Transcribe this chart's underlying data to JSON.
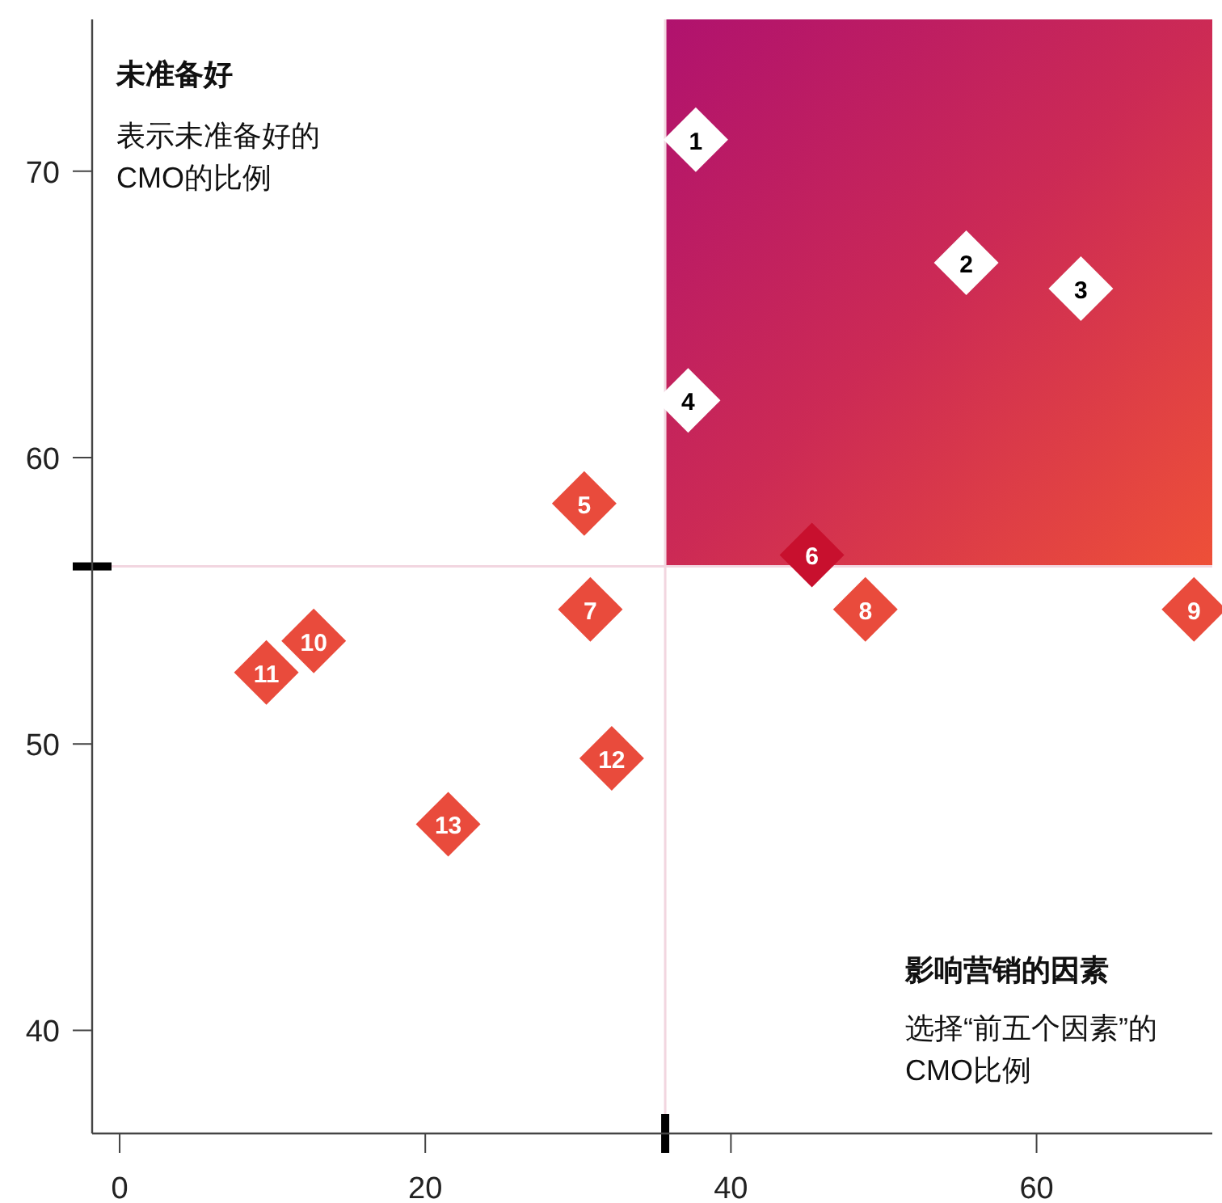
{
  "chart_data": {
    "type": "scatter",
    "xlabel": "影响营销的因素",
    "ylabel": "未准备好",
    "annotations": [
      "表示未准备好的CMO的比例",
      "选择“前五个因素”的CMO比例",
      {
        "text": "1",
        "x": 37.7,
        "y": 71.1
      },
      {
        "text": "2",
        "x": 55.4,
        "y": 66.8
      },
      {
        "text": "3",
        "x": 62.9,
        "y": 65.9
      },
      {
        "text": "4",
        "x": 37.2,
        "y": 62.0
      },
      {
        "text": "5",
        "x": 30.4,
        "y": 58.4
      },
      {
        "text": "6",
        "x": 45.3,
        "y": 56.6
      },
      {
        "text": "7",
        "x": 30.8,
        "y": 54.7
      },
      {
        "text": "8",
        "x": 48.8,
        "y": 54.7
      },
      {
        "text": "9",
        "x": 70.3,
        "y": 54.7
      },
      {
        "text": "10",
        "x": 12.7,
        "y": 53.6
      },
      {
        "text": "11",
        "x": 9.6,
        "y": 52.5
      },
      {
        "text": "12",
        "x": 32.2,
        "y": 49.5
      },
      {
        "text": "13",
        "x": 21.5,
        "y": 47.2
      }
    ],
    "x": [
      37.7,
      55.4,
      62.9,
      37.2,
      30.4,
      45.3,
      30.8,
      48.8,
      70.3,
      12.7,
      9.6,
      32.2,
      21.5
    ],
    "series": [
      {
        "values": [
          71.1,
          66.8,
          65.9,
          62.0,
          58.4,
          56.6,
          54.7,
          54.7,
          54.7,
          53.6,
          52.5,
          49.5,
          47.2
        ],
        "colors": [
          "#ffffff",
          "#ffffff",
          "#ffffff",
          "#ffffff",
          "#e94b3c",
          "#c8102e",
          "#e94b3c",
          "#e94b3c",
          "#e94b3c",
          "#e94b3c",
          "#e94b3c",
          "#e94b3c",
          "#e94b3c"
        ]
      }
    ],
    "marker": "diamond",
    "xlim": [
      -1.8,
      71.5
    ],
    "ylim": [
      36.4,
      75.3
    ],
    "xticks": [
      0,
      20,
      40,
      60
    ],
    "yticks": [
      40,
      50,
      60,
      70
    ],
    "grid": false,
    "ref_lines": [
      {
        "axis": "x",
        "value": 35.7,
        "color": "#f2d6e0"
      },
      {
        "axis": "y",
        "value": 56.2,
        "color": "#f2d6e0"
      }
    ]
  }
}
